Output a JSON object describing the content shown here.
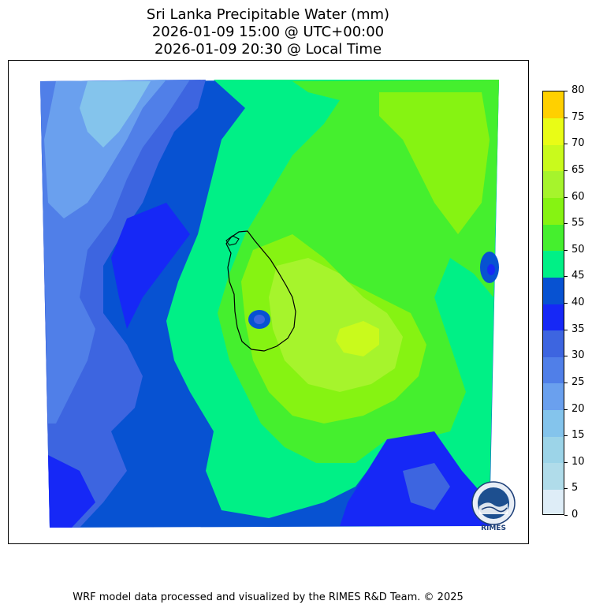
{
  "title": {
    "line1": "Sri Lanka Precipitable Water (mm)",
    "line2": "2026-01-09 15:00 @ UTC+00:00",
    "line3": "2026-01-09 20:30 @ Local Time"
  },
  "colorbar": {
    "ticks": [
      "0",
      "5",
      "10",
      "15",
      "20",
      "25",
      "30",
      "35",
      "40",
      "45",
      "50",
      "55",
      "60",
      "65",
      "70",
      "75",
      "80"
    ],
    "colors": [
      "#deedf7",
      "#b0dcea",
      "#9cd4e8",
      "#84c4ec",
      "#6aa0ee",
      "#507fe8",
      "#3d65e0",
      "#1628f6",
      "#0752d2",
      "#00f086",
      "#45ef2e",
      "#86f312",
      "#a6f42c",
      "#c9fa1c",
      "#e9fc16",
      "#fcef04"
    ],
    "top_color": "#ffd000"
  },
  "map": {
    "region": "Sri Lanka"
  },
  "logo": {
    "text": "RIMES"
  },
  "footer": "WRF model data processed and visualized by the RIMES R&D Team. © 2025"
}
